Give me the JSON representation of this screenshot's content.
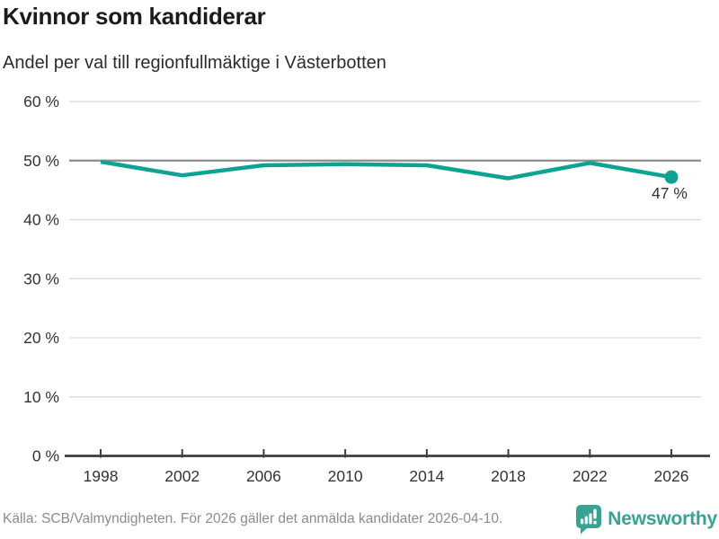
{
  "header": {
    "title": "Kvinnor som kandiderar",
    "subtitle": "Andel per val till regionfullmäktige i Västerbotten"
  },
  "footer": {
    "source": "Källa: SCB/Valmyndigheten. För 2026 gäller det anmälda kandidater 2026-04-10.",
    "brand": "Newsworthy"
  },
  "colors": {
    "line": "#0ea294",
    "grid": "#d9d9d9",
    "grid_emphasis": "#8c8c8c",
    "axis": "#3d3d3d",
    "tick_text": "#333333",
    "brand_teal": "#38a294",
    "muted_text": "#8b8b91"
  },
  "chart_data": {
    "type": "line",
    "title": "Kvinnor som kandiderar",
    "subtitle": "Andel per val till regionfullmäktige i Västerbotten",
    "x": [
      "1998",
      "2002",
      "2006",
      "2010",
      "2014",
      "2018",
      "2022",
      "2026"
    ],
    "series": [
      {
        "name": "Kvinnor som kandiderar",
        "values": [
          49.8,
          47.5,
          49.2,
          49.4,
          49.2,
          47.0,
          49.6,
          47.2
        ]
      }
    ],
    "point_label": {
      "x": "2026",
      "text": "47 %"
    },
    "ylim": [
      0,
      60
    ],
    "yticks": [
      0,
      10,
      20,
      30,
      40,
      50,
      60
    ],
    "ytick_suffix": " %",
    "xlabel": "",
    "ylabel": "",
    "grid": "horizontal",
    "emphasized_gridline": 50,
    "legend_position": "none"
  }
}
